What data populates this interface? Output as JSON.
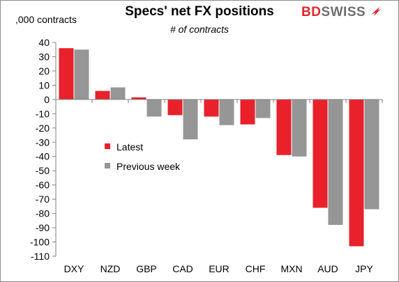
{
  "title": "Specs' net FX positions",
  "subtitle": "# of contracts",
  "unit_label": ",000 contracts",
  "logo": {
    "part1": "BD",
    "part2": "SWISS"
  },
  "colors": {
    "latest": "#e8212b",
    "previous": "#969696",
    "logo_red": "#e3262b",
    "logo_gray": "#6d6e71"
  },
  "chart_data": {
    "type": "bar",
    "categories": [
      "DXY",
      "NZD",
      "GBP",
      "CAD",
      "EUR",
      "CHF",
      "MXN",
      "AUD",
      "JPY"
    ],
    "series": [
      {
        "name": "Latest",
        "values": [
          36,
          6,
          1.5,
          -11,
          -12,
          -17.5,
          -39,
          -76,
          -103
        ]
      },
      {
        "name": "Previous week",
        "values": [
          35,
          8.5,
          -12,
          -28,
          -18,
          -13,
          -40,
          -88,
          -77
        ]
      }
    ],
    "ylim": [
      -110,
      40
    ],
    "yticks": [
      40,
      30,
      20,
      10,
      0,
      -10,
      -20,
      -30,
      -40,
      -50,
      -60,
      -70,
      -80,
      -90,
      -100,
      -110
    ],
    "grid": false,
    "legend_position": "middle-left"
  }
}
